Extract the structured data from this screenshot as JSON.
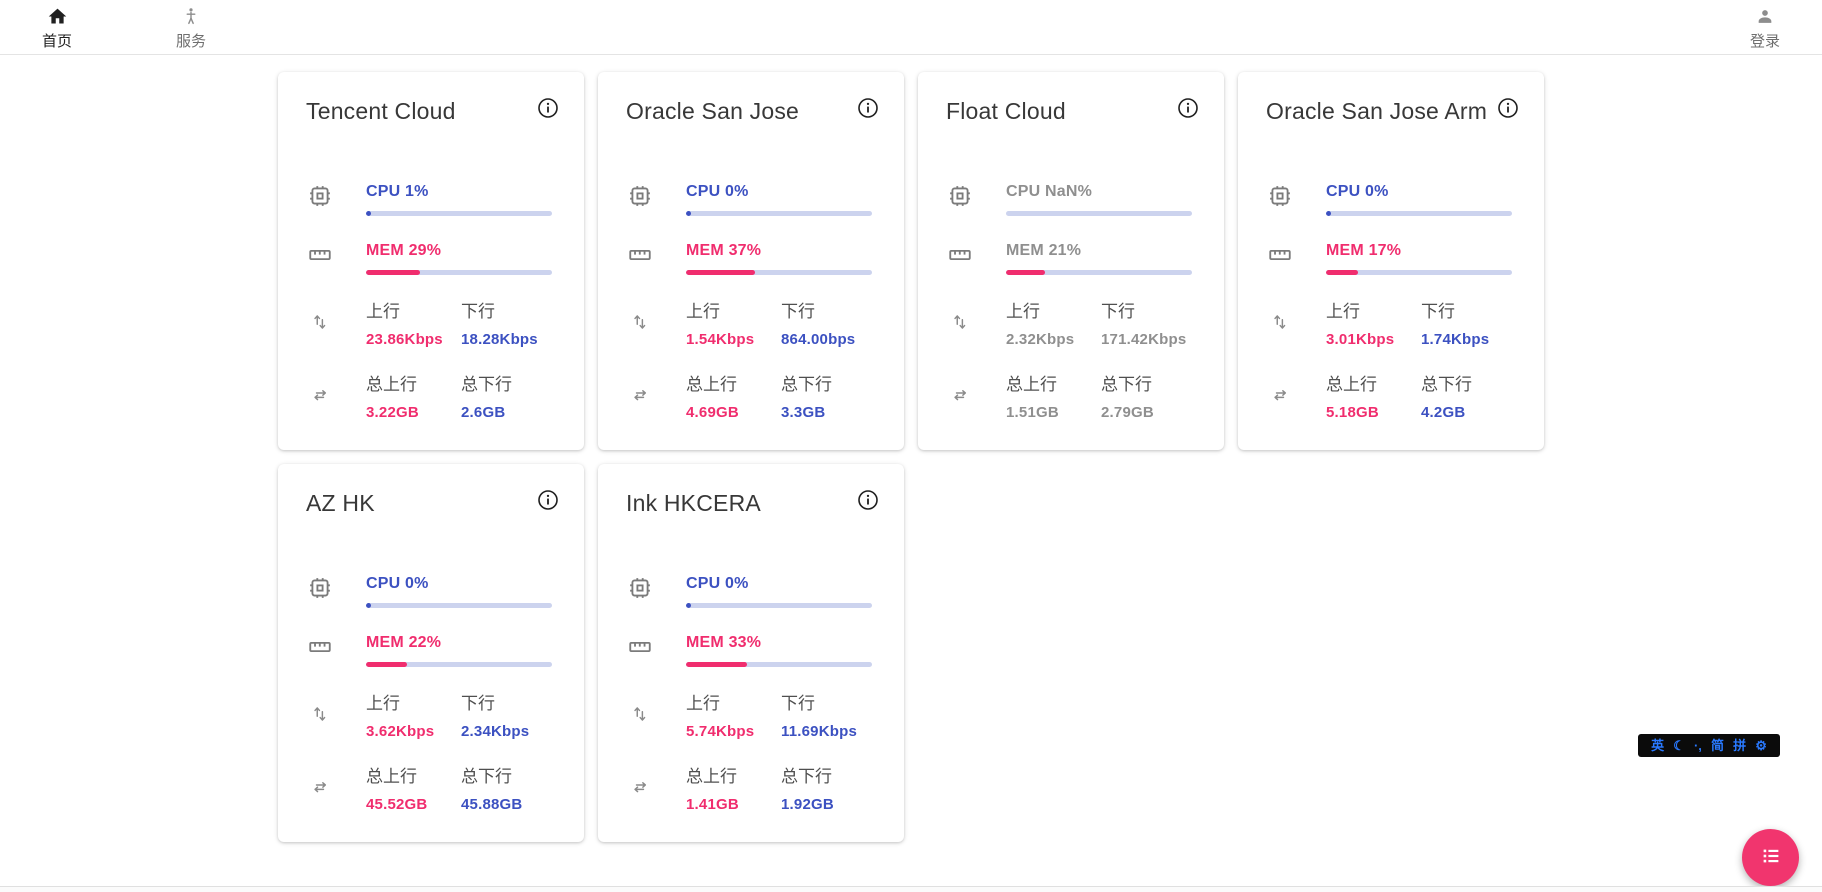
{
  "nav": {
    "home": {
      "label": "首页"
    },
    "services": {
      "label": "服务"
    },
    "login": {
      "label": "登录"
    }
  },
  "labels": {
    "up": "上行",
    "down": "下行",
    "total_up": "总上行",
    "total_down": "总下行"
  },
  "servers": [
    {
      "name": "Tencent Cloud",
      "cpu_text": "CPU 1%",
      "cpu_pct": 1,
      "mem_text": "MEM 29%",
      "mem_pct": 29,
      "up": "23.86Kbps",
      "down": "18.28Kbps",
      "total_up": "3.22GB",
      "total_down": "2.6GB",
      "muted": false
    },
    {
      "name": "Oracle San Jose",
      "cpu_text": "CPU 0%",
      "cpu_pct": 0,
      "mem_text": "MEM 37%",
      "mem_pct": 37,
      "up": "1.54Kbps",
      "down": "864.00bps",
      "total_up": "4.69GB",
      "total_down": "3.3GB",
      "muted": false
    },
    {
      "name": "Float Cloud",
      "cpu_text": "CPU NaN%",
      "cpu_pct": null,
      "mem_text": "MEM 21%",
      "mem_pct": 21,
      "up": "2.32Kbps",
      "down": "171.42Kbps",
      "total_up": "1.51GB",
      "total_down": "2.79GB",
      "muted": true
    },
    {
      "name": "Oracle San Jose Arm",
      "cpu_text": "CPU 0%",
      "cpu_pct": 0,
      "mem_text": "MEM 17%",
      "mem_pct": 17,
      "up": "3.01Kbps",
      "down": "1.74Kbps",
      "total_up": "5.18GB",
      "total_down": "4.2GB",
      "muted": false
    },
    {
      "name": "AZ HK",
      "cpu_text": "CPU 0%",
      "cpu_pct": 0,
      "mem_text": "MEM 22%",
      "mem_pct": 22,
      "up": "3.62Kbps",
      "down": "2.34Kbps",
      "total_up": "45.52GB",
      "total_down": "45.88GB",
      "muted": false
    },
    {
      "name": "Ink HKCERA",
      "cpu_text": "CPU 0%",
      "cpu_pct": 0,
      "mem_text": "MEM 33%",
      "mem_pct": 33,
      "up": "5.74Kbps",
      "down": "11.69Kbps",
      "total_up": "1.41GB",
      "total_down": "1.92GB",
      "muted": false
    }
  ],
  "ime": {
    "items": [
      "英",
      "☾",
      "·,",
      "简",
      "拼",
      "⚙"
    ]
  },
  "colors": {
    "accent_blue": "#3c51c1",
    "accent_pink": "#f02d6e",
    "track": "#ccd3ee",
    "muted_text": "#8f8f8f",
    "fab": "#f1356e",
    "ime_blue": "#2979ff"
  }
}
